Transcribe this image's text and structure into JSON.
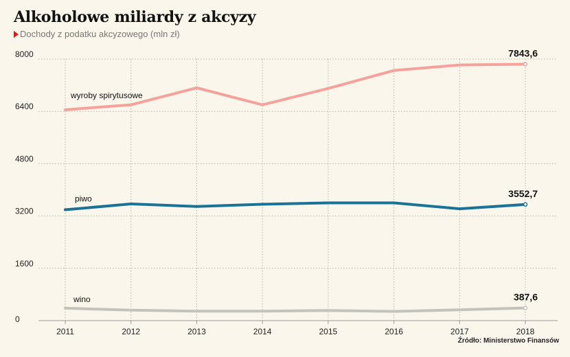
{
  "header": {
    "title": "Alkoholowe miliardy z akcyzy",
    "subtitle": "Dochody z podatku akcyzowego (mln zł)"
  },
  "footer": {
    "source": "Źródło: Ministerstwo Finansów"
  },
  "chart_data": {
    "type": "line",
    "title": "Alkoholowe miliardy z akcyzy",
    "subtitle": "Dochody z podatku akcyzowego (mln zł)",
    "x": [
      "2011",
      "2012",
      "2013",
      "2014",
      "2015",
      "2016",
      "2017",
      "2018"
    ],
    "y_ticks": [
      "0",
      "1600",
      "3200",
      "4800",
      "6400",
      "8000"
    ],
    "ylim": [
      0,
      8000
    ],
    "grid": "dotted",
    "series": [
      {
        "name": "wyroby spirytusowe",
        "color": "#f4a29a",
        "values": [
          6450,
          6600,
          7120,
          6600,
          7100,
          7650,
          7820,
          7843.6
        ],
        "end_label": "7843,6"
      },
      {
        "name": "piwo",
        "color": "#1a7396",
        "values": [
          3390,
          3570,
          3490,
          3560,
          3600,
          3600,
          3420,
          3552.7
        ],
        "end_label": "3552,7"
      },
      {
        "name": "wino",
        "color": "#c3c3bc",
        "values": [
          380,
          320,
          290,
          290,
          310,
          280,
          330,
          387.6
        ],
        "end_label": "387,6"
      }
    ]
  }
}
